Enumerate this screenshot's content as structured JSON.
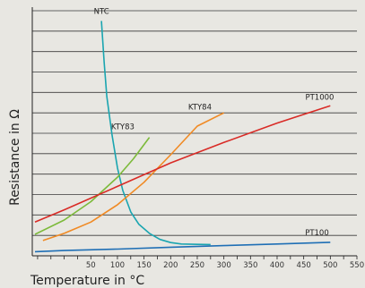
{
  "chart_data": {
    "type": "line",
    "title": "",
    "xlabel": "Temperature in °C",
    "ylabel": "Resistance in Ω",
    "xlim": [
      -60,
      550
    ],
    "ylim": [
      0,
      12
    ],
    "x_ticks": [
      50,
      100,
      150,
      200,
      250,
      300,
      350,
      400,
      450,
      500,
      550
    ],
    "grid": "horizontal",
    "legend": "inline labels",
    "series": [
      {
        "name": "NTC",
        "color": "#1aa5b0",
        "label_at": [
          70,
          11.85
        ],
        "points": [
          [
            70,
            11.5
          ],
          [
            75,
            9.5
          ],
          [
            80,
            7.8
          ],
          [
            90,
            5.9
          ],
          [
            100,
            4.3
          ],
          [
            110,
            3.2
          ],
          [
            125,
            2.15
          ],
          [
            140,
            1.55
          ],
          [
            160,
            1.1
          ],
          [
            180,
            0.8
          ],
          [
            200,
            0.65
          ],
          [
            220,
            0.58
          ],
          [
            250,
            0.56
          ],
          [
            275,
            0.55
          ]
        ]
      },
      {
        "name": "KTY83",
        "color": "#7cba3a",
        "label_at": [
          110,
          6.2
        ],
        "points": [
          [
            -55,
            1.05
          ],
          [
            0,
            1.75
          ],
          [
            50,
            2.65
          ],
          [
            100,
            3.85
          ],
          [
            130,
            4.75
          ],
          [
            160,
            5.8
          ]
        ]
      },
      {
        "name": "KTY84",
        "color": "#f08a24",
        "label_at": [
          255,
          7.15
        ],
        "points": [
          [
            -40,
            0.75
          ],
          [
            0,
            1.1
          ],
          [
            50,
            1.65
          ],
          [
            100,
            2.5
          ],
          [
            150,
            3.6
          ],
          [
            200,
            4.95
          ],
          [
            250,
            6.35
          ],
          [
            300,
            7.0
          ]
        ]
      },
      {
        "name": "PT1000",
        "color": "#d92b26",
        "label_at": [
          480,
          7.65
        ],
        "points": [
          [
            -55,
            1.65
          ],
          [
            0,
            2.25
          ],
          [
            100,
            3.4
          ],
          [
            200,
            4.55
          ],
          [
            300,
            5.55
          ],
          [
            400,
            6.5
          ],
          [
            500,
            7.35
          ]
        ]
      },
      {
        "name": "PT100",
        "color": "#1f6fb5",
        "label_at": [
          475,
          1.0
        ],
        "points": [
          [
            -55,
            0.2
          ],
          [
            0,
            0.26
          ],
          [
            100,
            0.33
          ],
          [
            200,
            0.42
          ],
          [
            300,
            0.5
          ],
          [
            400,
            0.58
          ],
          [
            500,
            0.66
          ]
        ]
      }
    ]
  }
}
